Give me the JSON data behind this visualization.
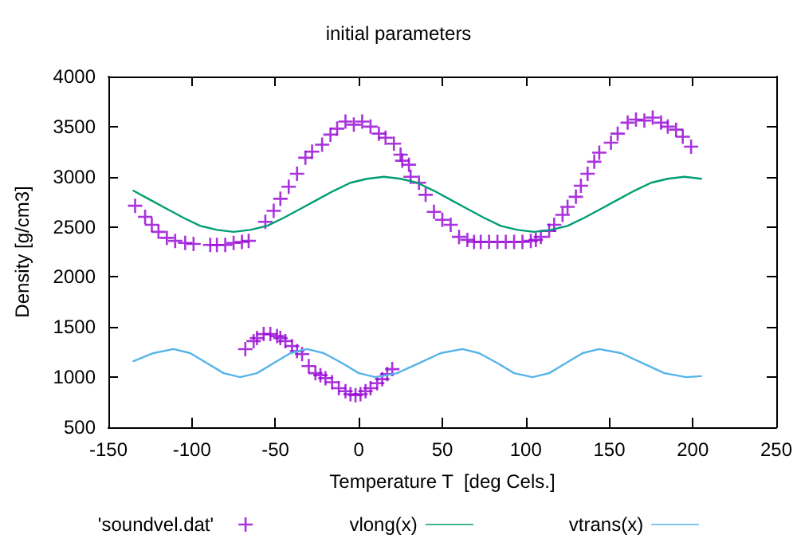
{
  "chart_data": {
    "type": "scatter",
    "title": "initial parameters",
    "xlabel": "Temperature T  [deg Cels.]",
    "ylabel": "Density [g/cm3]",
    "xlim": [
      -150,
      250
    ],
    "xticks": [
      -150,
      -100,
      -50,
      0,
      50,
      100,
      150,
      200,
      250
    ],
    "ylim": [
      500,
      4000
    ],
    "yticks": [
      500,
      1000,
      1500,
      2000,
      2500,
      3000,
      3500,
      4000
    ],
    "legend": "bottom",
    "series": [
      {
        "name": "'soundvel.dat'",
        "marker": "cross",
        "color": "#9400d3",
        "x": [
          -134,
          -128,
          -124,
          -120,
          -115,
          -110,
          -104,
          -99,
          -89,
          -85,
          -80,
          -75,
          -70,
          -66,
          -56,
          -51,
          -47,
          -42,
          -37,
          -32,
          -28,
          -22,
          -17,
          -13,
          -8,
          -3,
          2,
          7,
          12,
          16,
          21,
          25,
          26,
          30,
          31,
          36,
          40,
          45,
          50,
          55,
          60,
          65,
          69,
          73,
          78,
          83,
          88,
          93,
          98,
          103,
          106,
          109,
          114,
          117,
          122,
          125,
          130,
          133,
          137,
          141,
          144,
          151,
          155,
          161,
          166,
          171,
          176,
          181,
          185,
          190,
          194,
          199,
          -68,
          -63,
          -61,
          -57,
          -53,
          -49,
          -47,
          -44,
          -40,
          -37,
          -34,
          -30,
          -26,
          -23,
          -20,
          -16,
          -12,
          -8,
          -5,
          -2,
          1,
          4,
          7,
          11,
          14,
          17,
          20
        ],
        "values": [
          2710,
          2600,
          2520,
          2450,
          2390,
          2360,
          2340,
          2330,
          2320,
          2320,
          2320,
          2340,
          2350,
          2360,
          2550,
          2660,
          2780,
          2900,
          3030,
          3190,
          3250,
          3320,
          3420,
          3480,
          3550,
          3520,
          3550,
          3500,
          3430,
          3390,
          3330,
          3220,
          3160,
          3120,
          3000,
          2940,
          2820,
          2650,
          2570,
          2520,
          2400,
          2370,
          2350,
          2350,
          2350,
          2350,
          2350,
          2350,
          2350,
          2360,
          2370,
          2400,
          2460,
          2520,
          2620,
          2700,
          2800,
          2910,
          3030,
          3150,
          3240,
          3340,
          3430,
          3540,
          3570,
          3560,
          3590,
          3540,
          3500,
          3470,
          3400,
          3300,
          1280,
          1360,
          1390,
          1430,
          1430,
          1410,
          1390,
          1360,
          1310,
          1260,
          1230,
          1110,
          1040,
          1020,
          990,
          950,
          890,
          860,
          830,
          820,
          830,
          860,
          890,
          940,
          980,
          1030,
          1080
        ]
      },
      {
        "name": "vlong(x)",
        "type": "line",
        "marker": "none",
        "line_style": "solid",
        "color": "#009e73",
        "x": [
          -135,
          -125,
          -115,
          -105,
          -95,
          -85,
          -75,
          -65,
          -55,
          -45,
          -35,
          -25,
          -15,
          -5,
          5,
          15,
          25,
          35,
          45,
          55,
          65,
          75,
          85,
          95,
          105,
          115,
          125,
          135,
          145,
          155,
          165,
          175,
          185,
          195,
          205
        ],
        "values": [
          2860,
          2770,
          2680,
          2590,
          2510,
          2470,
          2450,
          2470,
          2510,
          2590,
          2680,
          2770,
          2860,
          2940,
          2980,
          3000,
          2980,
          2940,
          2860,
          2770,
          2680,
          2590,
          2510,
          2470,
          2450,
          2470,
          2510,
          2590,
          2680,
          2770,
          2860,
          2940,
          2980,
          3000,
          2980
        ]
      },
      {
        "name": "vtrans(x)",
        "type": "line",
        "marker": "none",
        "line_style": "solid",
        "color": "#56b4e9",
        "x": [
          -135,
          -123,
          -111,
          -101,
          -91,
          -81,
          -71,
          -61,
          -51,
          -41,
          -31,
          -21,
          -10,
          0,
          10,
          23,
          36,
          49,
          62,
          72,
          83,
          93,
          104,
          114,
          124,
          134,
          144,
          157,
          170,
          183,
          196,
          205
        ],
        "values": [
          1160,
          1240,
          1280,
          1240,
          1140,
          1040,
          1000,
          1040,
          1140,
          1240,
          1280,
          1240,
          1140,
          1040,
          1000,
          1040,
          1140,
          1240,
          1280,
          1240,
          1140,
          1040,
          1000,
          1040,
          1140,
          1240,
          1280,
          1240,
          1140,
          1040,
          1000,
          1010
        ]
      }
    ]
  }
}
